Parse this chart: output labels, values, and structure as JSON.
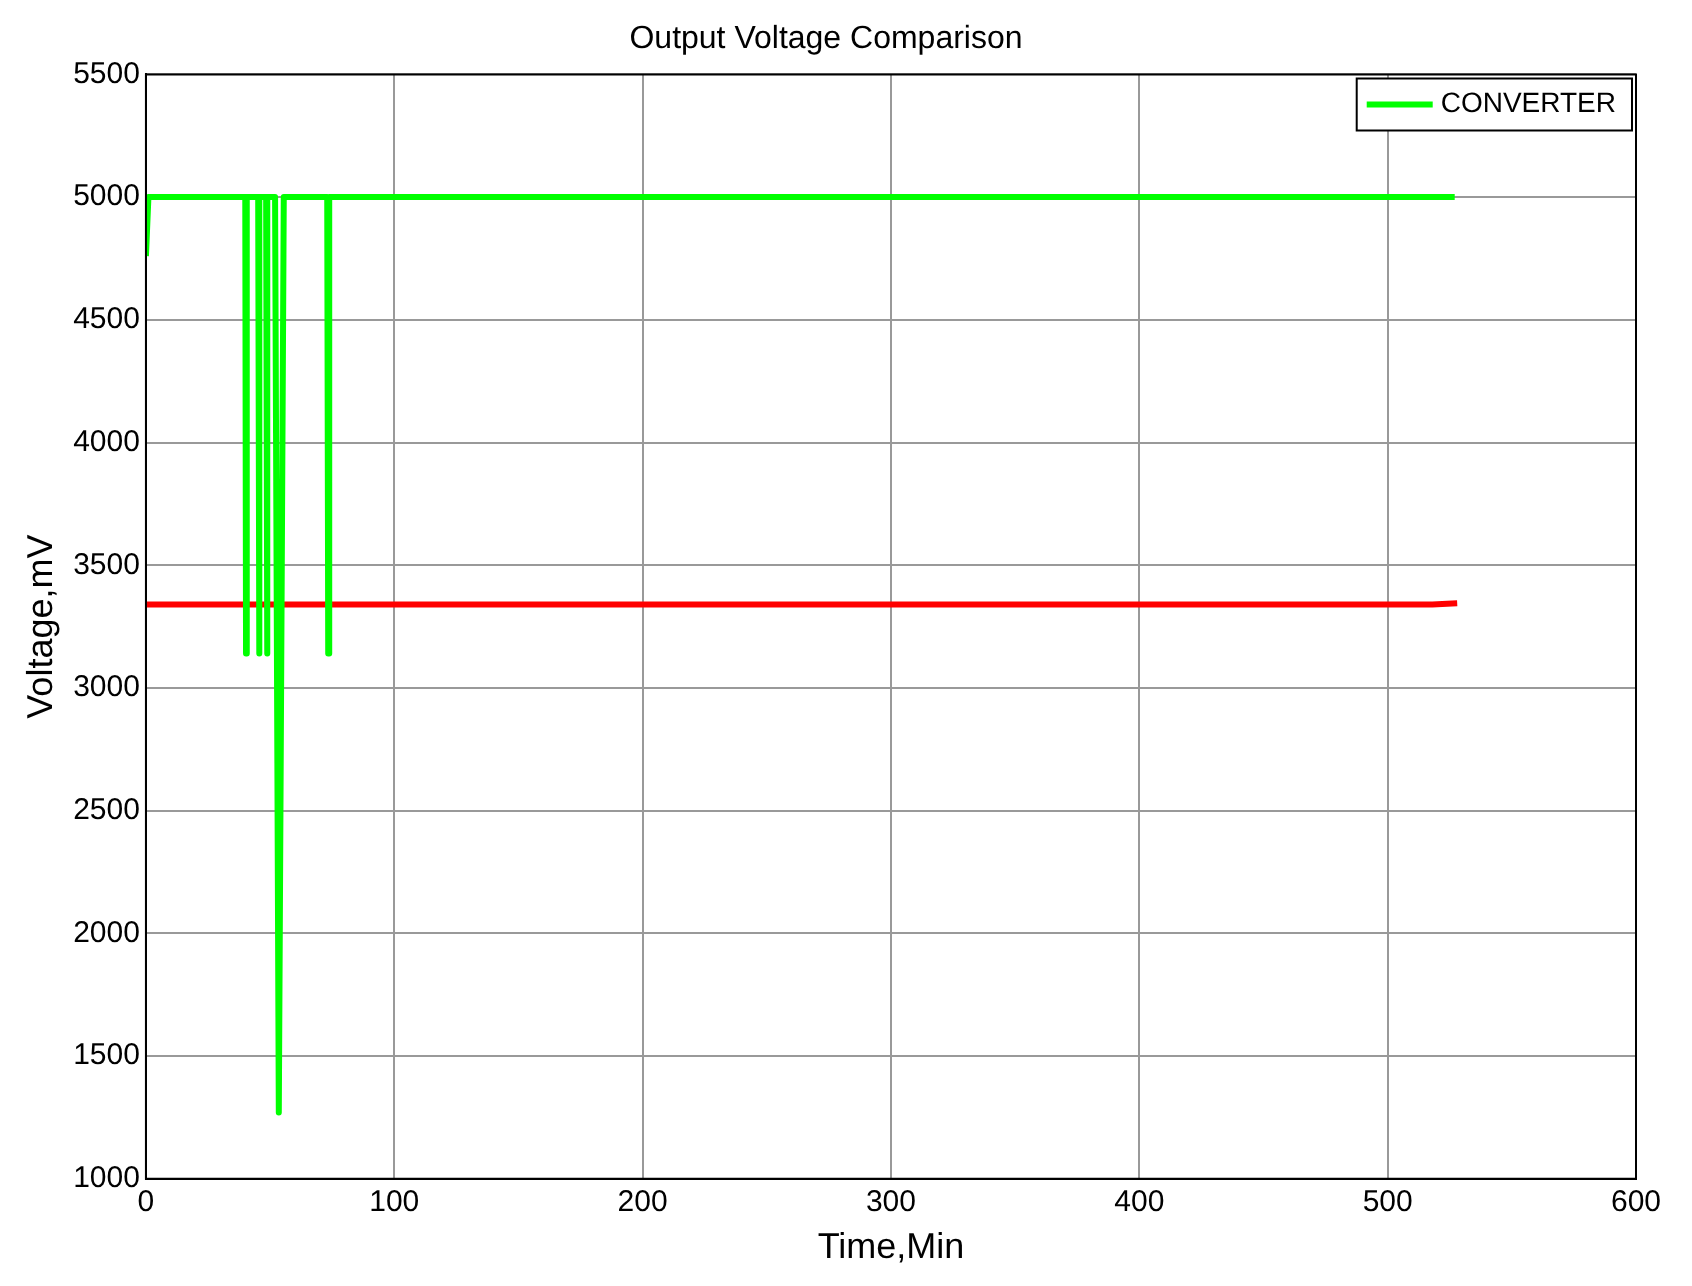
{
  "chart_data": {
    "type": "line",
    "title": "Output Voltage Comparison",
    "xlabel": "Time,Min",
    "ylabel": "Voltage,mV",
    "xlim": [
      0,
      600
    ],
    "xticks": [
      0,
      100,
      200,
      300,
      400,
      500,
      600
    ],
    "ylim": [
      1000,
      5500
    ],
    "yticks": [
      1000,
      1500,
      2000,
      2500,
      3000,
      3500,
      4000,
      4500,
      5000,
      5500
    ],
    "grid": true,
    "legend": "top right",
    "marker": "none",
    "line_style": "solid",
    "series": [
      {
        "name": "CONVERTER",
        "color": "#00ff00",
        "x": [
          0,
          1,
          40,
          40.3,
          40.6,
          45.2,
          45.5,
          45.8,
          48.4,
          48.7,
          49,
          52,
          53.5,
          55.5,
          73,
          73.4,
          73.8,
          527
        ],
        "values": [
          4760,
          5000,
          5000,
          3140,
          5000,
          5000,
          3140,
          5000,
          5000,
          3140,
          5000,
          5000,
          1270,
          5000,
          5000,
          3140,
          5000,
          5000
        ]
      },
      {
        "color": "#ff0000",
        "x": [
          0,
          518,
          528
        ],
        "values": [
          3340,
          3340,
          3345
        ]
      }
    ]
  }
}
